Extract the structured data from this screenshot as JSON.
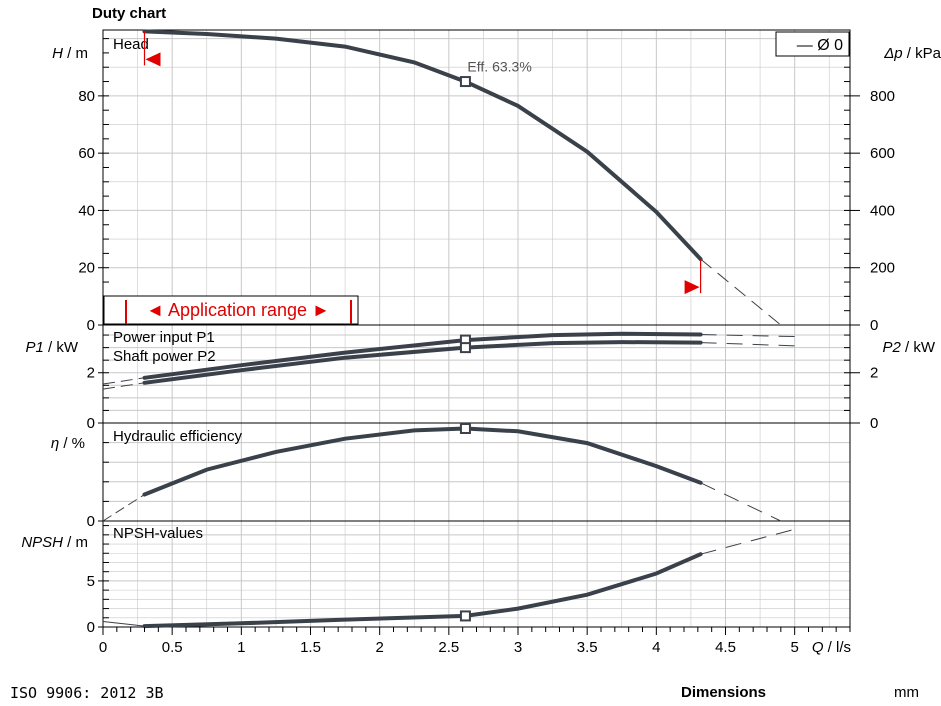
{
  "header": {
    "title": "Duty chart"
  },
  "footer": {
    "standard": "ISO 9906: 2012 3B",
    "dimensions_label": "Dimensions",
    "unit": "mm"
  },
  "colors": {
    "curve": "#3b414a",
    "grid": "#c8c8c8",
    "axis": "#000000",
    "range": "#e00000"
  },
  "chart_data": [
    {
      "type": "line",
      "panel": "head",
      "ylabel": "H / m",
      "ylabel_right": "Δp / kPa",
      "curve_label": "Head",
      "legend": "— Ø 0",
      "ylim": [
        0,
        103
      ],
      "y_ticks": [
        0,
        20,
        40,
        60,
        80
      ],
      "y_ticks_right": [
        0,
        200,
        400,
        600,
        800
      ],
      "annotation": "Eff. 63.3%",
      "application_range_label": "◄ Application range ►",
      "application_range": [
        0.3,
        4.32
      ],
      "duty_point": {
        "x": 2.62,
        "y": 85
      },
      "series": [
        {
          "name": "Head",
          "x": [
            0.3,
            0.75,
            1.25,
            1.75,
            2.25,
            2.62,
            3.0,
            3.5,
            4.0,
            4.32
          ],
          "y": [
            102.5,
            101.6,
            100,
            97.2,
            91.7,
            85,
            76.5,
            60.5,
            39.5,
            23
          ]
        }
      ],
      "extension": {
        "x": [
          4.32,
          4.9
        ],
        "y": [
          23,
          0
        ]
      }
    },
    {
      "type": "line",
      "panel": "power",
      "ylabel": "P1 / kW",
      "ylabel_right": "P2 / kW",
      "ylim": [
        0,
        3.9
      ],
      "y_ticks": [
        0,
        2
      ],
      "y_ticks_right": [
        0,
        2
      ],
      "series": [
        {
          "name": "Power input P1",
          "x": [
            0.3,
            1.0,
            1.75,
            2.62,
            3.25,
            3.75,
            4.32
          ],
          "y": [
            1.8,
            2.3,
            2.8,
            3.3,
            3.5,
            3.55,
            3.52
          ]
        },
        {
          "name": "Shaft power P2",
          "x": [
            0.3,
            1.0,
            1.75,
            2.62,
            3.25,
            3.75,
            4.32
          ],
          "y": [
            1.6,
            2.1,
            2.6,
            3.0,
            3.18,
            3.22,
            3.2
          ]
        }
      ],
      "duty_points": [
        {
          "x": 2.62,
          "y": 3.3
        },
        {
          "x": 2.62,
          "y": 3.0
        }
      ]
    },
    {
      "type": "line",
      "panel": "efficiency",
      "ylabel": "η / %",
      "curve_label": "Hydraulic efficiency",
      "ylim": [
        0,
        100
      ],
      "y_ticks": [
        0
      ],
      "series": [
        {
          "name": "Hydraulic efficiency",
          "x": [
            0.3,
            0.75,
            1.25,
            1.75,
            2.25,
            2.62,
            3.0,
            3.5,
            4.0,
            4.32
          ],
          "y": [
            27,
            52.5,
            70.5,
            84,
            92.5,
            94.4,
            91.5,
            79.5,
            56,
            39
          ]
        }
      ],
      "duty_point": {
        "x": 2.62,
        "y": 94.4
      }
    },
    {
      "type": "line",
      "panel": "npsh",
      "ylabel": "NPSH / m",
      "curve_label": "NPSH-values",
      "ylim": [
        0,
        11.5
      ],
      "y_ticks": [
        0,
        5
      ],
      "xlabel": "Q / l/s",
      "x_ticks": [
        0,
        0.5,
        1,
        1.5,
        2,
        2.5,
        3,
        3.5,
        4,
        4.5,
        5
      ],
      "x_tick_labels": [
        "0",
        "0.5",
        "1",
        "1.5",
        "2",
        "2.5",
        "3",
        "3.5",
        "4",
        "4.5",
        "5"
      ],
      "xlim": [
        0,
        5.4
      ],
      "series": [
        {
          "name": "NPSH-values",
          "x": [
            0.3,
            1.0,
            1.75,
            2.62,
            3.0,
            3.5,
            4.0,
            4.32
          ],
          "y": [
            0.1,
            0.4,
            0.8,
            1.2,
            2.0,
            3.5,
            5.8,
            7.9
          ]
        }
      ],
      "duty_point": {
        "x": 2.62,
        "y": 1.2
      }
    }
  ]
}
